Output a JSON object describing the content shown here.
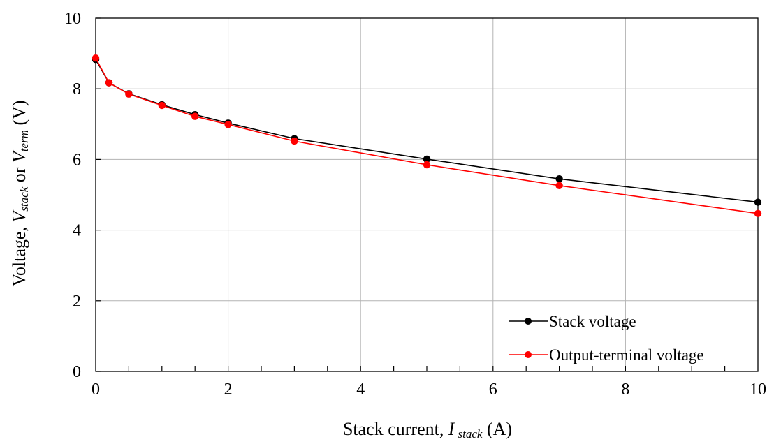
{
  "chart_data": {
    "type": "line",
    "x_axis": {
      "label_prefix": "Stack current, ",
      "label_var": "I",
      "label_sub": "stack",
      "label_suffix": " (A)",
      "range": [
        0,
        10
      ],
      "ticks": [
        0,
        2,
        4,
        6,
        8,
        10
      ],
      "tick_labels": [
        "0",
        "2",
        "4",
        "6",
        "8",
        "10"
      ],
      "minor_step": 0.5
    },
    "y_axis": {
      "label_prefix": "Voltage, ",
      "label_var1": "V",
      "label_sub1": "stack",
      "label_mid": " or ",
      "label_var2": "V",
      "label_sub2": "term",
      "label_suffix": " (V)",
      "range": [
        0,
        10
      ],
      "ticks": [
        0,
        2,
        4,
        6,
        8,
        10
      ],
      "tick_labels": [
        "0",
        "2",
        "4",
        "6",
        "8",
        "10"
      ]
    },
    "grid": true,
    "legend_position": "bottom-right",
    "series": [
      {
        "name": "Stack voltage",
        "color": "#000000",
        "x": [
          0,
          0.2,
          0.5,
          1.0,
          1.5,
          2.0,
          3.0,
          5.0,
          7.0,
          10.0
        ],
        "y": [
          8.83,
          8.17,
          7.86,
          7.55,
          7.27,
          7.03,
          6.59,
          6.01,
          5.45,
          4.79
        ]
      },
      {
        "name": "Output-terminal voltage",
        "color": "#ff0000",
        "x": [
          0,
          0.2,
          0.5,
          1.0,
          1.5,
          2.0,
          3.0,
          5.0,
          7.0,
          10.0
        ],
        "y": [
          8.87,
          8.17,
          7.85,
          7.53,
          7.22,
          6.99,
          6.52,
          5.85,
          5.26,
          4.47
        ]
      }
    ]
  }
}
